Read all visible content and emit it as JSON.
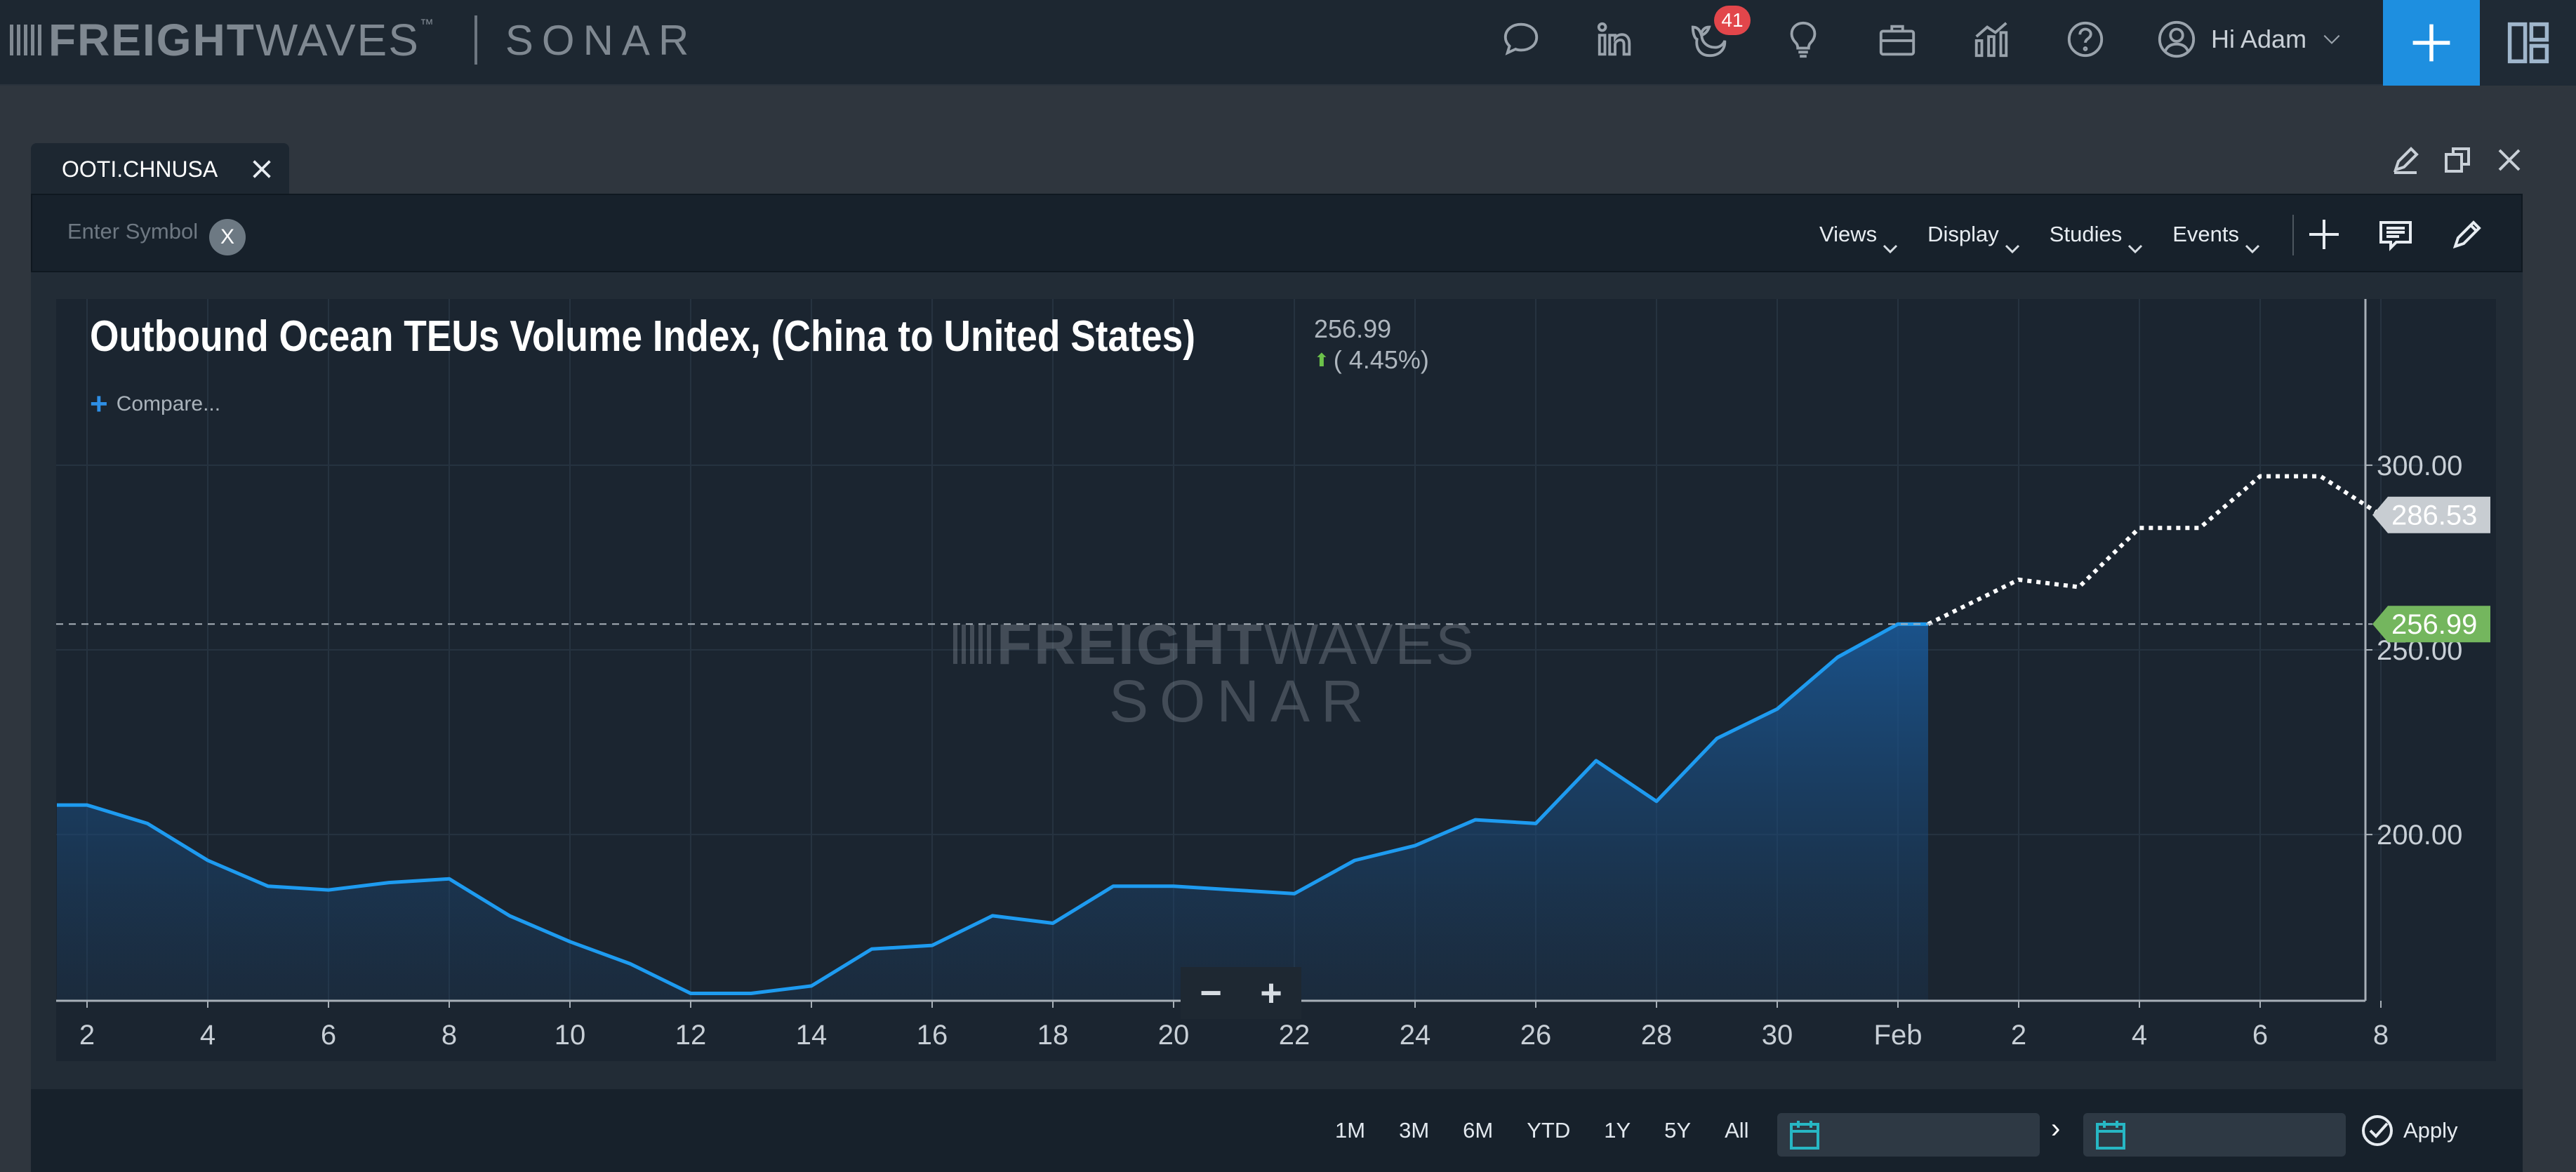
{
  "brand": {
    "freight_bold": "FREIGHT",
    "freight_light": "WAVES",
    "tm": "™",
    "sonar": "SONAR"
  },
  "nav": {
    "icons": [
      "chat-icon",
      "linkedin-icon",
      "whale-icon",
      "lightbulb-icon",
      "briefcase-icon",
      "chart-icon",
      "help-icon"
    ],
    "notification_count": "41",
    "user_greeting": "Hi Adam"
  },
  "tab": {
    "title": "OOTI.CHNUSA"
  },
  "toolbar": {
    "symbol_placeholder": "Enter Symbol",
    "clear_label": "X",
    "menus": [
      "Views",
      "Display",
      "Studies",
      "Events"
    ]
  },
  "chart_header": {
    "title": "Outbound Ocean TEUs Volume Index, (China to United States)",
    "last_value": "256.99",
    "change": "( 4.45%)",
    "compare_label": "Compare..."
  },
  "watermark": {
    "line1_bold": "FREIGHT",
    "line1_light": "WAVES",
    "line2": "SONAR"
  },
  "chart_data": {
    "type": "line",
    "title": "Outbound Ocean TEUs Volume Index, (China to United States)",
    "x_ticks": [
      "2",
      "4",
      "6",
      "8",
      "10",
      "12",
      "14",
      "16",
      "18",
      "20",
      "22",
      "24",
      "26",
      "28",
      "30",
      "Feb",
      "2",
      "4",
      "6",
      "8"
    ],
    "y_ticks": [
      "300.00",
      "250.00",
      "200.00"
    ],
    "ylim": [
      155,
      345
    ],
    "grid": true,
    "series": [
      {
        "name": "actual",
        "style": "solid-filled",
        "color": "#1e9bf0",
        "x": [
          1.5,
          2,
          3,
          4,
          5,
          6,
          7,
          8,
          9,
          10,
          11,
          12,
          13,
          14,
          15,
          16,
          17,
          18,
          19,
          20,
          21,
          22,
          23,
          24,
          25,
          26,
          27,
          28,
          29,
          30,
          31,
          32,
          32.5
        ],
        "y": [
          208,
          208,
          203,
          193,
          186,
          185,
          187,
          188,
          178,
          171,
          165,
          157,
          157,
          159,
          169,
          170,
          178,
          176,
          186,
          186,
          185,
          184,
          193,
          197,
          204,
          203,
          220,
          209,
          226,
          234,
          248,
          257,
          256.99
        ]
      },
      {
        "name": "forecast",
        "style": "dotted",
        "color": "#ffffff",
        "x": [
          32.5,
          34,
          35,
          36,
          37,
          38,
          39,
          40,
          40.5
        ],
        "y": [
          256.99,
          269,
          267,
          283,
          283,
          297,
          297,
          286.53,
          286.53
        ]
      }
    ],
    "current_value_label": "256.99",
    "forecast_value_label": "286.53",
    "current_label_color": "#74b65e",
    "forecast_label_color": "#c8cdd2"
  },
  "footer": {
    "ranges": [
      "1M",
      "3M",
      "6M",
      "YTD",
      "1Y",
      "5Y",
      "All"
    ],
    "range_arrow": "›",
    "apply_label": "Apply"
  },
  "colors": {
    "accent": "#1e8fe0",
    "badge": "#e2464b",
    "calendar": "#27b7c4"
  }
}
